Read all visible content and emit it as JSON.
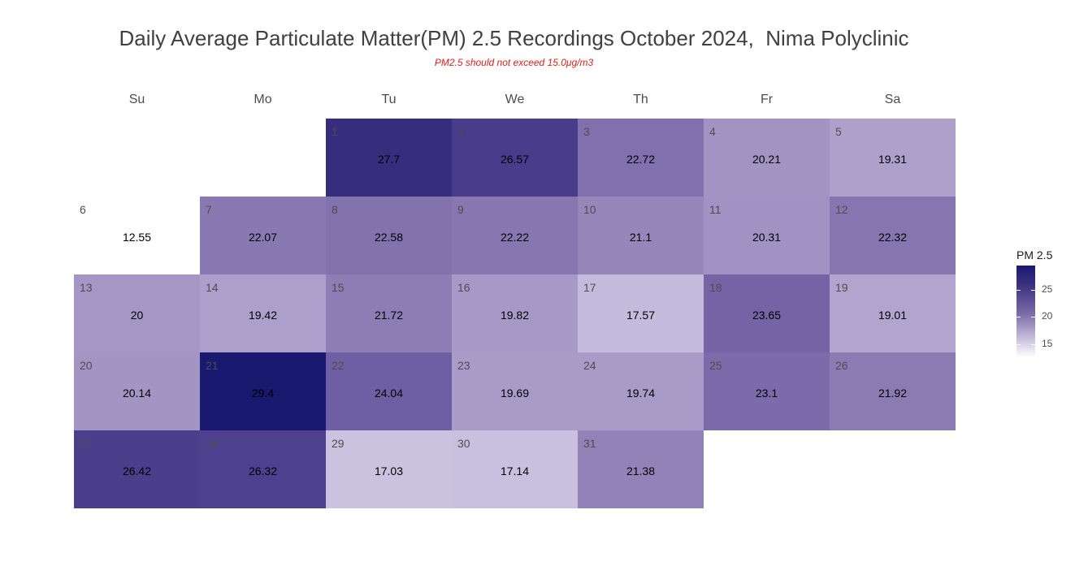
{
  "chart_data": {
    "type": "heatmap",
    "title": "Daily Average Particulate Matter(PM) 2.5 Recordings October 2024,  Nima Polyclinic",
    "subtitle": "PM2.5 should not exceed 15.0μg/m3",
    "weekdays": [
      "Su",
      "Mo",
      "Tu",
      "We",
      "Th",
      "Fr",
      "Sa"
    ],
    "first_weekday_index": 2,
    "days": [
      1,
      2,
      3,
      4,
      5,
      6,
      7,
      8,
      9,
      10,
      11,
      12,
      13,
      14,
      15,
      16,
      17,
      18,
      19,
      20,
      21,
      22,
      23,
      24,
      25,
      26,
      27,
      28,
      29,
      30,
      31
    ],
    "values": [
      27.7,
      26.57,
      22.72,
      20.21,
      19.31,
      12.55,
      22.07,
      22.58,
      22.22,
      21.1,
      20.31,
      22.32,
      20,
      19.42,
      21.72,
      19.82,
      17.57,
      23.65,
      19.01,
      20.14,
      29.4,
      24.04,
      19.69,
      19.74,
      23.1,
      21.92,
      26.42,
      26.32,
      17.03,
      17.14,
      21.38
    ],
    "value_labels": [
      "27.7",
      "26.57",
      "22.72",
      "20.21",
      "19.31",
      "12.55",
      "22.07",
      "22.58",
      "22.22",
      "21.1",
      "20.31",
      "22.32",
      "20",
      "19.42",
      "21.72",
      "19.82",
      "17.57",
      "23.65",
      "19.01",
      "20.14",
      "29.4",
      "24.04",
      "19.69",
      "19.74",
      "23.1",
      "21.92",
      "26.42",
      "26.32",
      "17.03",
      "17.14",
      "21.38"
    ],
    "legend": {
      "title": "PM 2.5",
      "position": "right",
      "ticks": [
        15,
        20,
        25
      ],
      "tick_labels": [
        "15",
        "20",
        "25"
      ],
      "range": [
        12.55,
        29.4
      ],
      "low_color": "#ffffff",
      "high_color": "#191970"
    }
  }
}
